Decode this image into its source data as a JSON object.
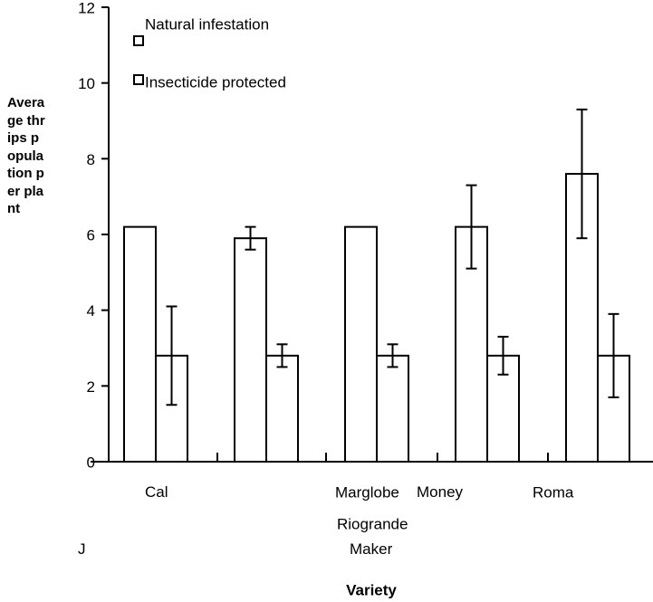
{
  "chart_data": {
    "type": "bar",
    "y_label": "Average thrips population per plant",
    "x_label": "Variety",
    "categories": [
      "Cal J",
      "Riogrande",
      "Marglobe",
      "Money Maker",
      "Roma"
    ],
    "series": [
      {
        "name": "Natural infestation",
        "color": "#ffffff",
        "values": [
          6.2,
          5.9,
          6.2,
          6.2,
          7.6
        ],
        "errors": [
          0,
          0.3,
          0,
          1.1,
          1.7
        ]
      },
      {
        "name": "Insecticide protected",
        "color": "#ffffff",
        "values": [
          2.8,
          2.8,
          2.8,
          2.8,
          2.8
        ],
        "errors": [
          1.3,
          0.3,
          0.3,
          0.5,
          1.1
        ]
      }
    ],
    "ylim": [
      0,
      12
    ],
    "yticks": [
      0,
      2,
      4,
      6,
      8,
      10,
      12
    ]
  }
}
